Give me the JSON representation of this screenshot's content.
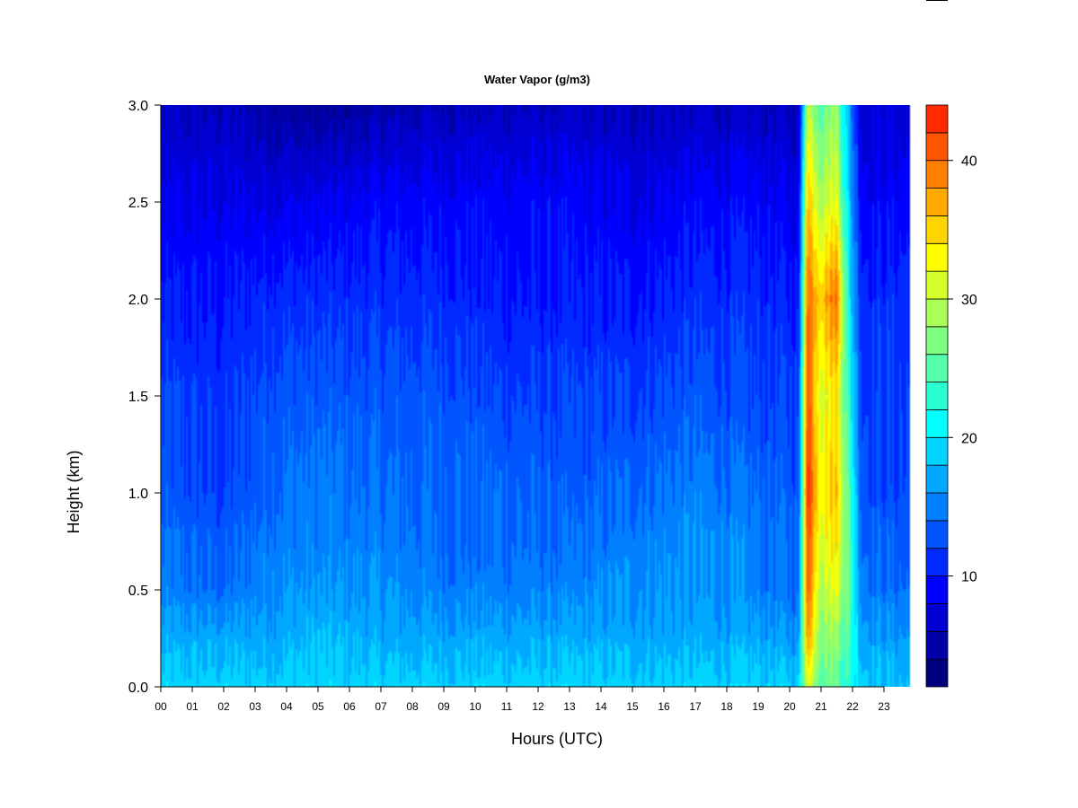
{
  "chart_data": {
    "type": "heatmap",
    "title": "Water Vapor (g/m3)",
    "xlabel": "Hours (UTC)",
    "ylabel": "Height (km)",
    "x_ticks": [
      "00",
      "01",
      "02",
      "03",
      "04",
      "05",
      "06",
      "07",
      "08",
      "09",
      "10",
      "11",
      "12",
      "13",
      "14",
      "15",
      "16",
      "17",
      "18",
      "19",
      "20",
      "21",
      "22",
      "23"
    ],
    "y_ticks": [
      "0.0",
      "0.5",
      "1.0",
      "1.5",
      "2.0",
      "2.5",
      "3.0"
    ],
    "colorbar_ticks": [
      "10",
      "20",
      "30",
      "40"
    ],
    "xlim": [
      0,
      24
    ],
    "ylim": [
      0,
      3.0
    ],
    "value_range": [
      2,
      44
    ],
    "levels": [
      2,
      4,
      6,
      8,
      10,
      12,
      14,
      16,
      18,
      20,
      22,
      24,
      26,
      28,
      30,
      32,
      34,
      36,
      38,
      40,
      42,
      44
    ],
    "colormap": [
      "#00007f",
      "#0000a9",
      "#0000d4",
      "#0000ff",
      "#002aff",
      "#0055ff",
      "#007fff",
      "#00a9ff",
      "#00d4ff",
      "#00ffff",
      "#2affd4",
      "#55ffa9",
      "#7fff7f",
      "#a9ff55",
      "#d4ff2a",
      "#ffff00",
      "#ffd400",
      "#ffa900",
      "#ff7f00",
      "#ff5500",
      "#ff2a00",
      "#d40000",
      "#7f0000"
    ],
    "profile_heights_km": [
      0.0,
      0.25,
      0.5,
      0.75,
      1.0,
      1.5,
      2.0,
      2.5,
      3.0
    ],
    "profiles": [
      {
        "hour": 0,
        "values": [
          19,
          17,
          15,
          14,
          13,
          12,
          10,
          8,
          6
        ]
      },
      {
        "hour": 2,
        "values": [
          19,
          17,
          14,
          13,
          12,
          11,
          10,
          8,
          6
        ]
      },
      {
        "hour": 3.5,
        "values": [
          19,
          17,
          16,
          15,
          14,
          13,
          11,
          8,
          5
        ]
      },
      {
        "hour": 5,
        "values": [
          19,
          18,
          16,
          15,
          15,
          13,
          11,
          8,
          4
        ]
      },
      {
        "hour": 7,
        "values": [
          19,
          17,
          16,
          15,
          14,
          13,
          11,
          9,
          5
        ]
      },
      {
        "hour": 9,
        "values": [
          19,
          17,
          15,
          14,
          14,
          13,
          11,
          9,
          6
        ]
      },
      {
        "hour": 11,
        "values": [
          19,
          17,
          15,
          14,
          14,
          12,
          10,
          9,
          6
        ]
      },
      {
        "hour": 13,
        "values": [
          19,
          17,
          15,
          14,
          13,
          12,
          10,
          9,
          6
        ]
      },
      {
        "hour": 15,
        "values": [
          19,
          17,
          16,
          15,
          14,
          12,
          10,
          8,
          6
        ]
      },
      {
        "hour": 17,
        "values": [
          19,
          17,
          16,
          16,
          15,
          13,
          11,
          9,
          6
        ]
      },
      {
        "hour": 19,
        "values": [
          19,
          17,
          15,
          15,
          14,
          12,
          11,
          9,
          6
        ]
      },
      {
        "hour": 20.3,
        "values": [
          19,
          16,
          14,
          14,
          13,
          12,
          10,
          8,
          6
        ]
      },
      {
        "hour": 20.55,
        "values": [
          32,
          38,
          41,
          42,
          43,
          42,
          40,
          36,
          30
        ]
      },
      {
        "hour": 21.0,
        "values": [
          26,
          28,
          30,
          32,
          34,
          32,
          36,
          30,
          26
        ]
      },
      {
        "hour": 21.5,
        "values": [
          26,
          28,
          32,
          34,
          36,
          34,
          40,
          32,
          28
        ]
      },
      {
        "hour": 21.9,
        "values": [
          22,
          24,
          25,
          25,
          24,
          22,
          20,
          18,
          16
        ]
      },
      {
        "hour": 22.3,
        "values": [
          19,
          17,
          15,
          14,
          13,
          12,
          11,
          9,
          7
        ]
      },
      {
        "hour": 23.8,
        "values": [
          18,
          16,
          14,
          13,
          12,
          12,
          11,
          9,
          7
        ]
      }
    ]
  }
}
